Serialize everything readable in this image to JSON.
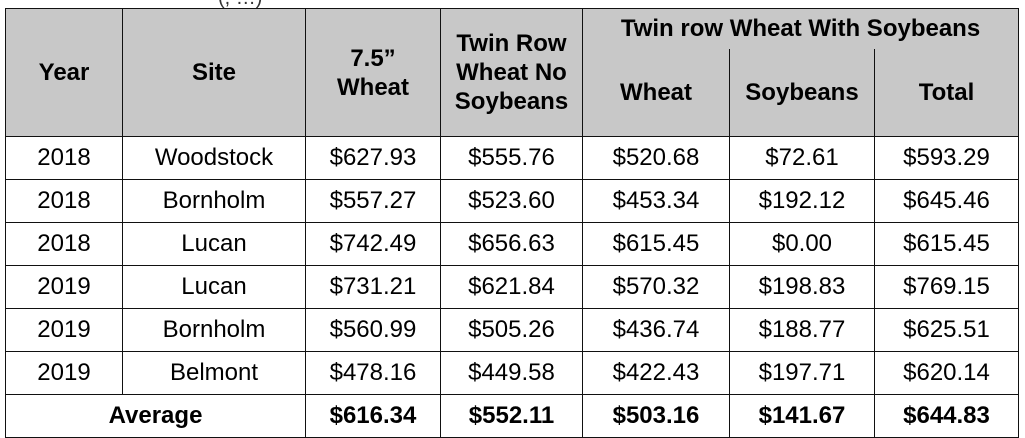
{
  "cut_caption": "(, …)",
  "table": {
    "headers": {
      "year": "Year",
      "site": "Site",
      "wheat_75": "7.5” Wheat",
      "twin_no_soy": "Twin Row Wheat No Soybeans",
      "twin_with_soy": "Twin row Wheat With Soybeans",
      "sub_wheat": "Wheat",
      "sub_soybeans": "Soybeans",
      "sub_total": "Total"
    },
    "rows": [
      {
        "year": "2018",
        "site": "Woodstock",
        "wheat_75": "$627.93",
        "twin_no_soy": "$555.76",
        "wheat": "$520.68",
        "soybeans": "$72.61",
        "total": "$593.29"
      },
      {
        "year": "2018",
        "site": "Bornholm",
        "wheat_75": "$557.27",
        "twin_no_soy": "$523.60",
        "wheat": "$453.34",
        "soybeans": "$192.12",
        "total": "$645.46"
      },
      {
        "year": "2018",
        "site": "Lucan",
        "wheat_75": "$742.49",
        "twin_no_soy": "$656.63",
        "wheat": "$615.45",
        "soybeans": "$0.00",
        "total": "$615.45"
      },
      {
        "year": "2019",
        "site": "Lucan",
        "wheat_75": "$731.21",
        "twin_no_soy": "$621.84",
        "wheat": "$570.32",
        "soybeans": "$198.83",
        "total": "$769.15"
      },
      {
        "year": "2019",
        "site": "Bornholm",
        "wheat_75": "$560.99",
        "twin_no_soy": "$505.26",
        "wheat": "$436.74",
        "soybeans": "$188.77",
        "total": "$625.51"
      },
      {
        "year": "2019",
        "site": "Belmont",
        "wheat_75": "$478.16",
        "twin_no_soy": "$449.58",
        "wheat": "$422.43",
        "soybeans": "$197.71",
        "total": "$620.14"
      }
    ],
    "average": {
      "label": "Average",
      "wheat_75": "$616.34",
      "twin_no_soy": "$552.11",
      "wheat": "$503.16",
      "soybeans": "$141.67",
      "total": "$644.83"
    }
  }
}
